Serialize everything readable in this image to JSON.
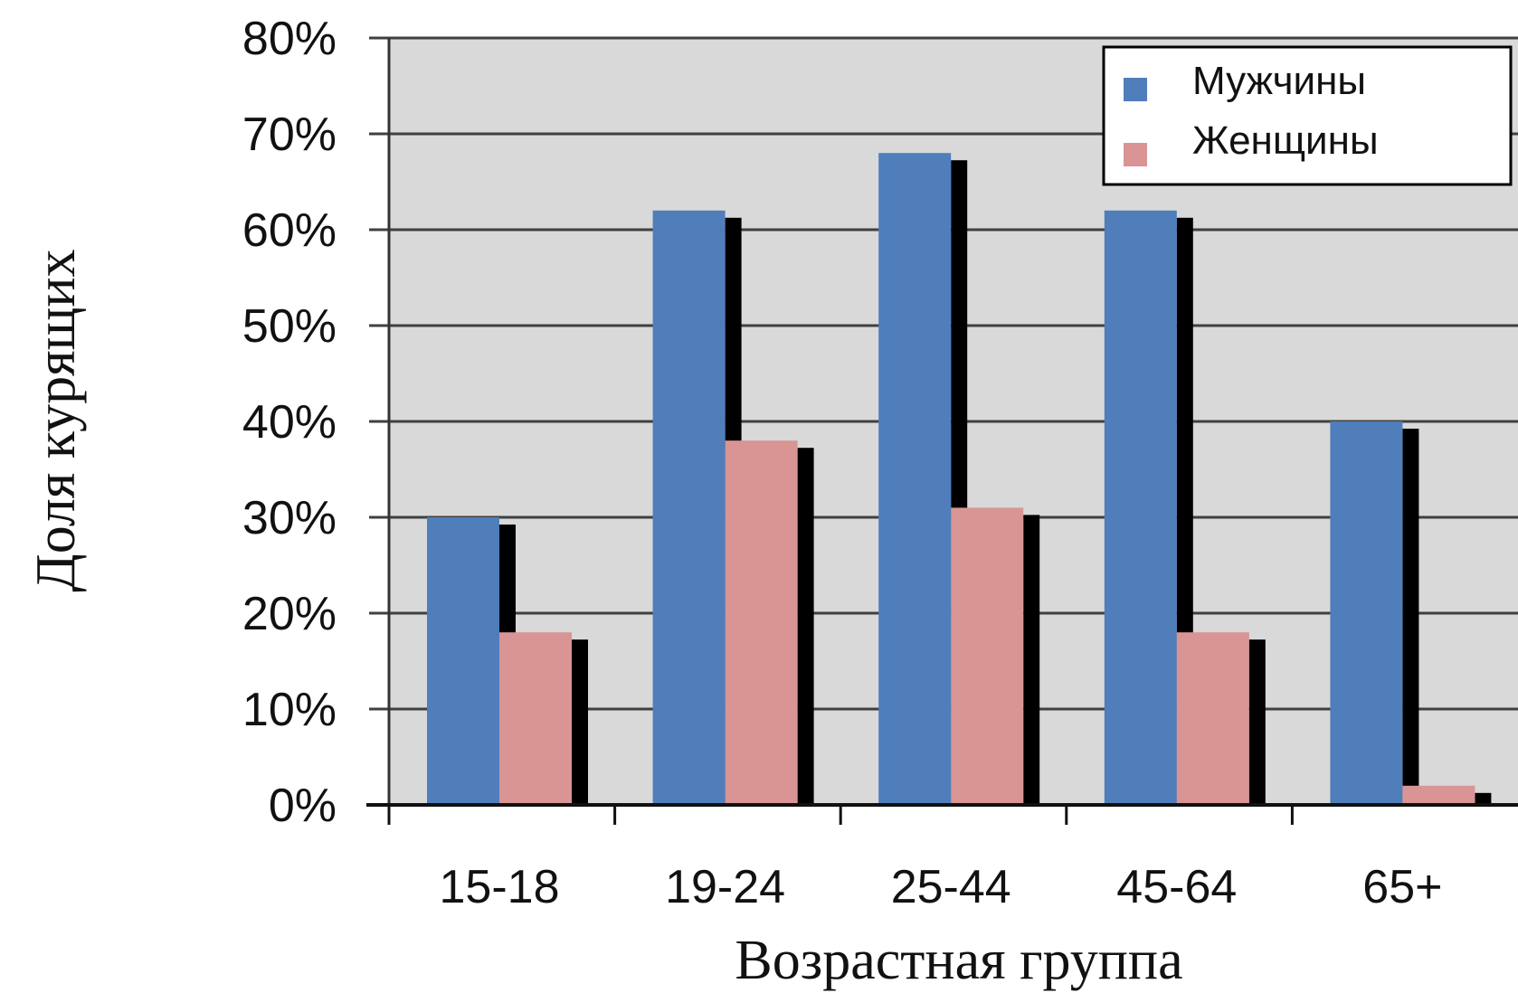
{
  "chart_data": {
    "type": "bar",
    "categories": [
      "15-18",
      "19-24",
      "25-44",
      "45-64",
      "65+"
    ],
    "series": [
      {
        "name": "Мужчины",
        "values": [
          30,
          62,
          68,
          62,
          40
        ]
      },
      {
        "name": "Женщины",
        "values": [
          18,
          38,
          31,
          18,
          2
        ]
      }
    ],
    "xlabel": "Возрастная группа",
    "ylabel": "Доля курящих",
    "ylim": [
      0,
      80
    ],
    "yticks": [
      "0%",
      "10%",
      "20%",
      "30%",
      "40%",
      "50%",
      "60%",
      "70%",
      "80%"
    ],
    "grid": true,
    "legend_position": "top-right",
    "colors": {
      "men": "#4f7ebb",
      "women": "#d99594",
      "plot_background": "#d9d9d9",
      "gridline": "#404040",
      "shadow": "#000000"
    }
  }
}
